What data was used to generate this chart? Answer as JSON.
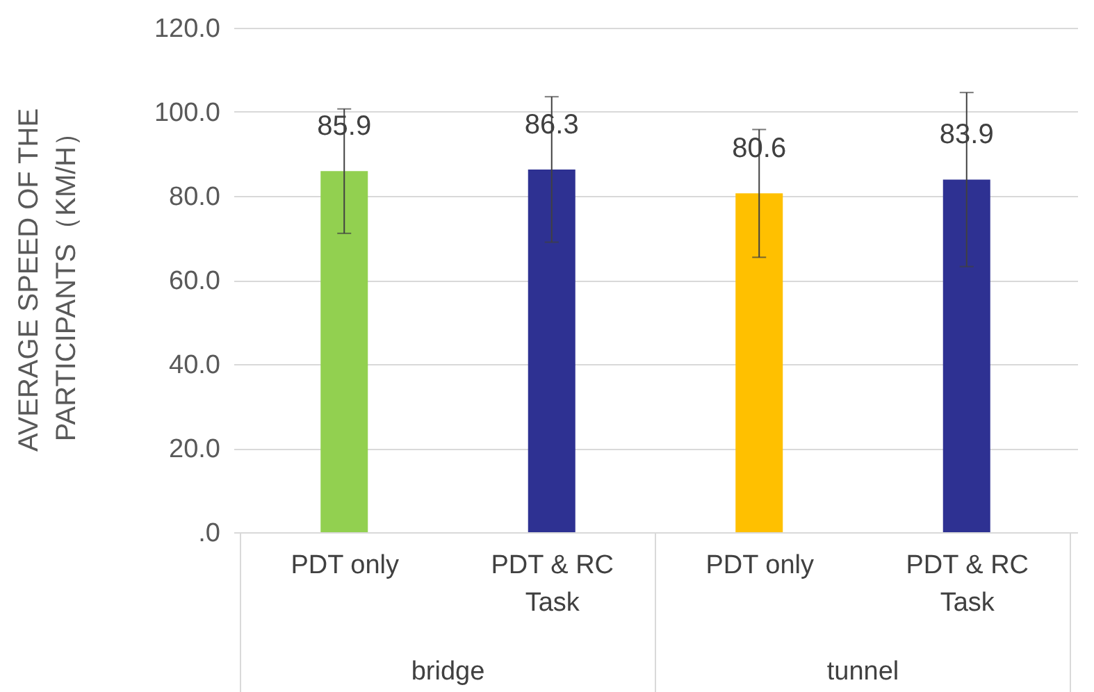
{
  "chart_data": {
    "type": "bar",
    "ylabel": "AVERAGE SPEED OF THE PARTICIPANTS（KM/H）",
    "categories": [
      "PDT only",
      "PDT & RC Task",
      "PDT only",
      "PDT & RC Task"
    ],
    "values": [
      85.9,
      86.3,
      80.6,
      83.9
    ],
    "colors": [
      "#92d050",
      "#2e3192",
      "#ffc000",
      "#2e3192"
    ],
    "errors": [
      14.8,
      17.3,
      15.2,
      20.7
    ],
    "data_labels": true,
    "annotations": [
      "bridge",
      "tunnel"
    ],
    "ylim": [
      0,
      120
    ],
    "yticks": [
      {
        "value": 0,
        "label": ".0"
      },
      {
        "value": 20,
        "label": "20.0"
      },
      {
        "value": 40,
        "label": "40.0"
      },
      {
        "value": 60,
        "label": "60.0"
      },
      {
        "value": 80,
        "label": "80.0"
      },
      {
        "value": 100,
        "label": "100.0"
      },
      {
        "value": 120,
        "label": "120.0"
      }
    ],
    "grid": "y"
  }
}
